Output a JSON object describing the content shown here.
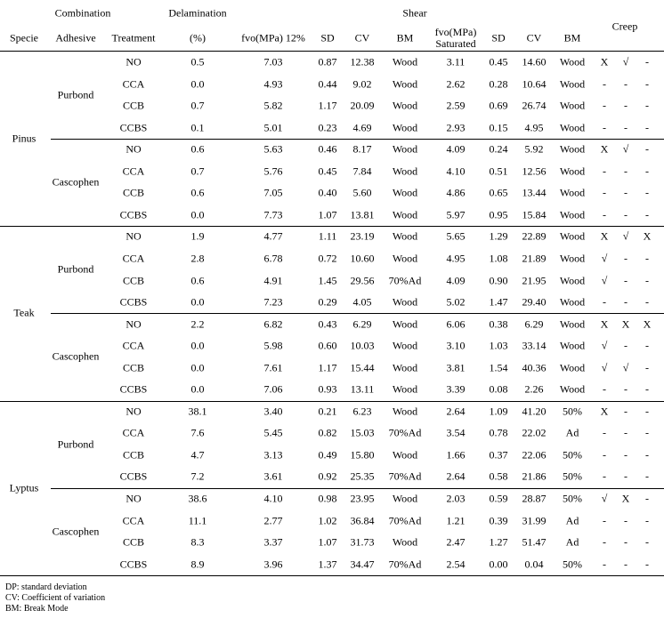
{
  "header": {
    "row1": {
      "combination": "Combination",
      "delamination": "Delamination",
      "shear": "Shear",
      "creep": "Creep"
    },
    "row2": [
      "Specie",
      "Adhesive",
      "Treatment",
      "(%)",
      "fvo(MPa) 12%",
      "SD",
      "CV",
      "BM",
      "fvo(MPa) Saturated",
      "SD",
      "CV",
      "BM"
    ]
  },
  "table": {
    "species": [
      {
        "name": "Pinus",
        "adhesives": [
          {
            "name": "Purbond",
            "rows": [
              [
                "NO",
                "0.5",
                "7.03",
                "0.87",
                "12.38",
                "Wood",
                "3.11",
                "0.45",
                "14.60",
                "Wood",
                "X",
                "√",
                "-"
              ],
              [
                "CCA",
                "0.0",
                "4.93",
                "0.44",
                "9.02",
                "Wood",
                "2.62",
                "0.28",
                "10.64",
                "Wood",
                "-",
                "-",
                "-"
              ],
              [
                "CCB",
                "0.7",
                "5.82",
                "1.17",
                "20.09",
                "Wood",
                "2.59",
                "0.69",
                "26.74",
                "Wood",
                "-",
                "-",
                "-"
              ],
              [
                "CCBS",
                "0.1",
                "5.01",
                "0.23",
                "4.69",
                "Wood",
                "2.93",
                "0.15",
                "4.95",
                "Wood",
                "-",
                "-",
                "-"
              ]
            ]
          },
          {
            "name": "Cascophen",
            "rows": [
              [
                "NO",
                "0.6",
                "5.63",
                "0.46",
                "8.17",
                "Wood",
                "4.09",
                "0.24",
                "5.92",
                "Wood",
                "X",
                "√",
                "-"
              ],
              [
                "CCA",
                "0.7",
                "5.76",
                "0.45",
                "7.84",
                "Wood",
                "4.10",
                "0.51",
                "12.56",
                "Wood",
                "-",
                "-",
                "-"
              ],
              [
                "CCB",
                "0.6",
                "7.05",
                "0.40",
                "5.60",
                "Wood",
                "4.86",
                "0.65",
                "13.44",
                "Wood",
                "-",
                "-",
                "-"
              ],
              [
                "CCBS",
                "0.0",
                "7.73",
                "1.07",
                "13.81",
                "Wood",
                "5.97",
                "0.95",
                "15.84",
                "Wood",
                "-",
                "-",
                "-"
              ]
            ]
          }
        ]
      },
      {
        "name": "Teak",
        "adhesives": [
          {
            "name": "Purbond",
            "rows": [
              [
                "NO",
                "1.9",
                "4.77",
                "1.11",
                "23.19",
                "Wood",
                "5.65",
                "1.29",
                "22.89",
                "Wood",
                "X",
                "√",
                "X"
              ],
              [
                "CCA",
                "2.8",
                "6.78",
                "0.72",
                "10.60",
                "Wood",
                "4.95",
                "1.08",
                "21.89",
                "Wood",
                "√",
                "-",
                "-"
              ],
              [
                "CCB",
                "0.6",
                "4.91",
                "1.45",
                "29.56",
                "70%Ad",
                "4.09",
                "0.90",
                "21.95",
                "Wood",
                "√",
                "-",
                "-"
              ],
              [
                "CCBS",
                "0.0",
                "7.23",
                "0.29",
                "4.05",
                "Wood",
                "5.02",
                "1.47",
                "29.40",
                "Wood",
                "-",
                "-",
                "-"
              ]
            ]
          },
          {
            "name": "Cascophen",
            "rows": [
              [
                "NO",
                "2.2",
                "6.82",
                "0.43",
                "6.29",
                "Wood",
                "6.06",
                "0.38",
                "6.29",
                "Wood",
                "X",
                "X",
                "X"
              ],
              [
                "CCA",
                "0.0",
                "5.98",
                "0.60",
                "10.03",
                "Wood",
                "3.10",
                "1.03",
                "33.14",
                "Wood",
                "√",
                "-",
                "-"
              ],
              [
                "CCB",
                "0.0",
                "7.61",
                "1.17",
                "15.44",
                "Wood",
                "3.81",
                "1.54",
                "40.36",
                "Wood",
                "√",
                "√",
                "-"
              ],
              [
                "CCBS",
                "0.0",
                "7.06",
                "0.93",
                "13.11",
                "Wood",
                "3.39",
                "0.08",
                "2.26",
                "Wood",
                "-",
                "-",
                "-"
              ]
            ]
          }
        ]
      },
      {
        "name": "Lyptus",
        "adhesives": [
          {
            "name": "Purbond",
            "rows": [
              [
                "NO",
                "38.1",
                "3.40",
                "0.21",
                "6.23",
                "Wood",
                "2.64",
                "1.09",
                "41.20",
                "50%",
                "X",
                "-",
                "-"
              ],
              [
                "CCA",
                "7.6",
                "5.45",
                "0.82",
                "15.03",
                "70%Ad",
                "3.54",
                "0.78",
                "22.02",
                "Ad",
                "-",
                "-",
                "-"
              ],
              [
                "CCB",
                "4.7",
                "3.13",
                "0.49",
                "15.80",
                "Wood",
                "1.66",
                "0.37",
                "22.06",
                "50%",
                "-",
                "-",
                "-"
              ],
              [
                "CCBS",
                "7.2",
                "3.61",
                "0.92",
                "25.35",
                "70%Ad",
                "2.64",
                "0.58",
                "21.86",
                "50%",
                "-",
                "-",
                "-"
              ]
            ]
          },
          {
            "name": "Cascophen",
            "rows": [
              [
                "NO",
                "38.6",
                "4.10",
                "0.98",
                "23.95",
                "Wood",
                "2.03",
                "0.59",
                "28.87",
                "50%",
                "√",
                "X",
                "-"
              ],
              [
                "CCA",
                "11.1",
                "2.77",
                "1.02",
                "36.84",
                "70%Ad",
                "1.21",
                "0.39",
                "31.99",
                "Ad",
                "-",
                "-",
                "-"
              ],
              [
                "CCB",
                "8.3",
                "3.37",
                "1.07",
                "31.73",
                "Wood",
                "2.47",
                "1.27",
                "51.47",
                "Ad",
                "-",
                "-",
                "-"
              ],
              [
                "CCBS",
                "8.9",
                "3.96",
                "1.37",
                "34.47",
                "70%Ad",
                "2.54",
                "0.00",
                "0.04",
                "50%",
                "-",
                "-",
                "-"
              ]
            ]
          }
        ]
      }
    ]
  },
  "notes": [
    "DP: standard deviation",
    "CV: Coefficient of variation",
    "BM: Break Mode"
  ]
}
